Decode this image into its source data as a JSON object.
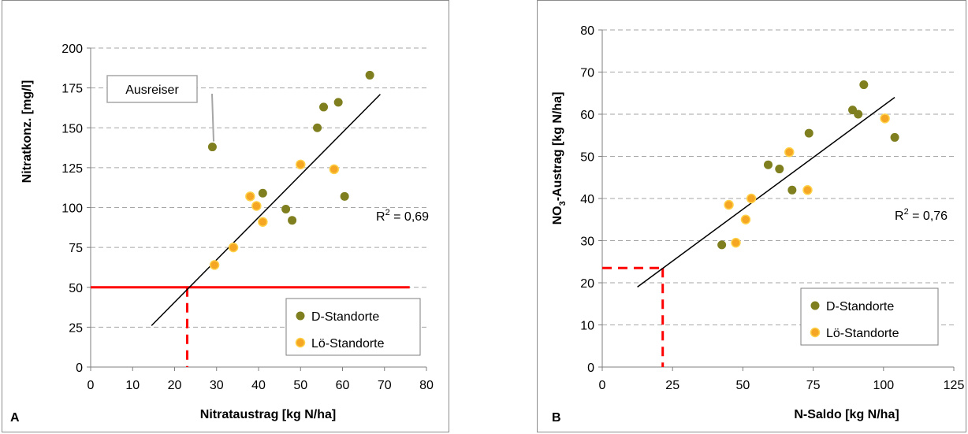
{
  "chart_data": [
    {
      "panel_label": "A",
      "type": "scatter",
      "xlabel": "Nitrataustrag  [kg N/ha]",
      "ylabel": "Nitratkonz. [mg/l]",
      "xlim": [
        0,
        80
      ],
      "ylim": [
        0,
        200
      ],
      "xticks": [
        0,
        10,
        20,
        30,
        40,
        50,
        60,
        70,
        80
      ],
      "yticks": [
        0,
        25,
        50,
        75,
        100,
        125,
        150,
        175,
        200
      ],
      "grid": "horizontal dashed",
      "legend_position": "bottom-right",
      "series": [
        {
          "name": "D-Standorte",
          "color": "#7f7f1f",
          "points": [
            {
              "x": 29,
              "y": 138
            },
            {
              "x": 41,
              "y": 109
            },
            {
              "x": 46.5,
              "y": 99
            },
            {
              "x": 48,
              "y": 92
            },
            {
              "x": 54,
              "y": 150
            },
            {
              "x": 55.5,
              "y": 163
            },
            {
              "x": 59,
              "y": 166
            },
            {
              "x": 60.5,
              "y": 107
            },
            {
              "x": 66.5,
              "y": 183
            }
          ]
        },
        {
          "name": "Lö-Standorte",
          "color": "#f5a623",
          "points": [
            {
              "x": 29.5,
              "y": 64
            },
            {
              "x": 34,
              "y": 75
            },
            {
              "x": 38,
              "y": 107
            },
            {
              "x": 39.5,
              "y": 101
            },
            {
              "x": 41,
              "y": 91
            },
            {
              "x": 50,
              "y": 127
            },
            {
              "x": 58,
              "y": 124
            }
          ]
        }
      ],
      "trendline": {
        "from": [
          14.5,
          26
        ],
        "to": [
          69,
          171
        ],
        "color": "#000000"
      },
      "r_squared_label": "R",
      "r_squared_exp": "2",
      "r_squared_value": " = 0,69",
      "annotation_text": "Ausreiser",
      "threshold_line": {
        "y": 50,
        "x_from": 0,
        "x_to": 76,
        "color": "#ff0000"
      },
      "threshold_drop": {
        "x": 23,
        "y_top": 50,
        "color": "#ff0000"
      }
    },
    {
      "panel_label": "B",
      "type": "scatter",
      "xlabel": "N-Saldo  [kg N/ha]",
      "ylabel_main": "NO",
      "ylabel_sub": "3",
      "ylabel_rest": "-Austrag [kg N/ha]",
      "xlim": [
        0,
        125
      ],
      "ylim": [
        0,
        80
      ],
      "xticks": [
        0,
        25,
        50,
        75,
        100,
        125
      ],
      "yticks": [
        0,
        10,
        20,
        30,
        40,
        50,
        60,
        70,
        80
      ],
      "grid": "horizontal dashed",
      "legend_position": "bottom-right",
      "series": [
        {
          "name": "D-Standorte",
          "color": "#7f7f1f",
          "points": [
            {
              "x": 42.5,
              "y": 29
            },
            {
              "x": 59,
              "y": 48
            },
            {
              "x": 63,
              "y": 47
            },
            {
              "x": 67.5,
              "y": 42
            },
            {
              "x": 73.5,
              "y": 55.5
            },
            {
              "x": 89,
              "y": 61
            },
            {
              "x": 91,
              "y": 60
            },
            {
              "x": 93,
              "y": 67
            },
            {
              "x": 104,
              "y": 54.5
            }
          ]
        },
        {
          "name": "Lö-Standorte",
          "color": "#f5a623",
          "points": [
            {
              "x": 45,
              "y": 38.5
            },
            {
              "x": 47.5,
              "y": 29.5
            },
            {
              "x": 51,
              "y": 35
            },
            {
              "x": 53,
              "y": 40
            },
            {
              "x": 66.5,
              "y": 51
            },
            {
              "x": 73,
              "y": 42
            },
            {
              "x": 100.5,
              "y": 59
            }
          ]
        }
      ],
      "trendline": {
        "from": [
          12.5,
          19
        ],
        "to": [
          104,
          64
        ],
        "color": "#000000"
      },
      "r_squared_label": "R",
      "r_squared_exp": "2",
      "r_squared_value": " = 0,76",
      "threshold_line": {
        "y": 23.5,
        "x_from": 0,
        "x_to": 21.5,
        "color": "#ff0000"
      },
      "threshold_drop": {
        "x": 21.5,
        "y_top": 23.5,
        "color": "#ff0000"
      }
    }
  ]
}
